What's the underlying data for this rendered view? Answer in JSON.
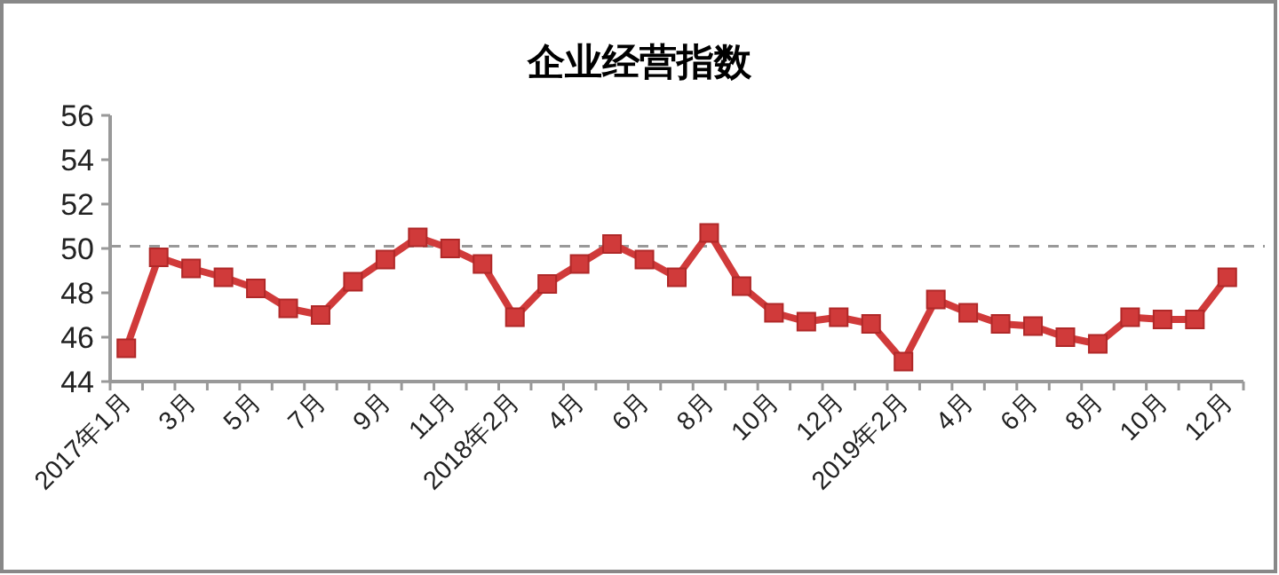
{
  "chart_data": {
    "type": "line",
    "title": "企业经营指数",
    "categories": [
      "2017年1月",
      null,
      "3月",
      null,
      "5月",
      null,
      "7月",
      null,
      "9月",
      null,
      "11月",
      null,
      "2018年2月",
      null,
      "4月",
      null,
      "6月",
      null,
      "8月",
      null,
      "10月",
      null,
      "12月",
      null,
      "2019年2月",
      null,
      "4月",
      null,
      "6月",
      null,
      "8月",
      null,
      "10月",
      null,
      "12月"
    ],
    "series": [
      {
        "color": "#d03a3a",
        "values": [
          45.5,
          49.6,
          49.1,
          48.7,
          48.2,
          47.3,
          47.0,
          48.5,
          49.5,
          50.5,
          50.0,
          49.3,
          46.9,
          48.4,
          49.3,
          50.2,
          49.5,
          48.7,
          50.7,
          48.3,
          47.1,
          46.7,
          46.9,
          46.6,
          44.9,
          47.7,
          47.1,
          46.6,
          46.5,
          46.0,
          45.7,
          46.9,
          46.8,
          46.8,
          48.7
        ]
      }
    ],
    "ylim": [
      44,
      56
    ],
    "yticks": [
      44,
      46,
      48,
      50,
      52,
      54,
      56
    ],
    "grid": false,
    "marker": "square",
    "line_style": "solid",
    "ref_lines": [
      {
        "axis": "y",
        "value": 50.1,
        "color": "#999999",
        "line_style": "dashed"
      }
    ]
  }
}
